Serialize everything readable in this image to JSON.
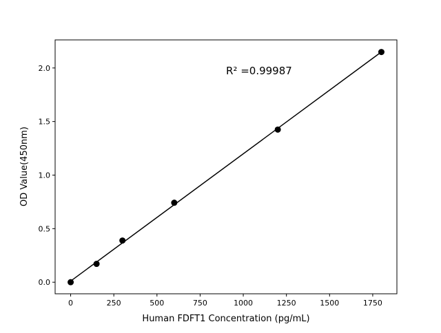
{
  "chart_data": {
    "type": "scatter",
    "title": "",
    "xlabel": "Human FDFT1 Concentration (pg/mL)",
    "ylabel": "OD Value(450nm)",
    "xlim": [
      -90,
      1890
    ],
    "ylim": [
      -0.108,
      2.262
    ],
    "xticks": [
      0,
      250,
      500,
      750,
      1000,
      1250,
      1500,
      1750
    ],
    "yticks": [
      0.0,
      0.5,
      1.0,
      1.5,
      2.0
    ],
    "xtick_labels": [
      "0",
      "250",
      "500",
      "750",
      "1000",
      "1250",
      "1500",
      "1750"
    ],
    "ytick_labels": [
      "0.0",
      "0.5",
      "1.0",
      "1.5",
      "2.0"
    ],
    "grid": false,
    "legend": "none",
    "series": [
      {
        "x": [
          0,
          150,
          300,
          600,
          1200,
          1800
        ],
        "y": [
          0.0,
          0.171,
          0.389,
          0.742,
          1.425,
          2.149
        ],
        "marker": "circle",
        "color": "#000000",
        "fit_line": "linear"
      }
    ],
    "annotation": "R² =0.99987"
  }
}
